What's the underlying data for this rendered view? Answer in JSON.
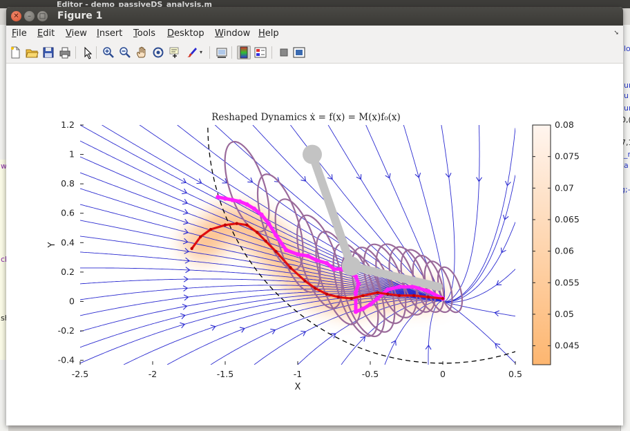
{
  "background": {
    "top_text": "Editor - demo_passiveDS_analysis.m",
    "right_fragments": [
      "lo",
      "ur",
      "u",
      "ur",
      "0,(",
      "7,1",
      "_n",
      "a",
      "g;-"
    ],
    "left_fragments": [
      "wi",
      "ck",
      "sh"
    ]
  },
  "window": {
    "title": "Figure 1",
    "close_label": "✕",
    "min_label": "–",
    "max_label": "□"
  },
  "menu": {
    "items": [
      "File",
      "Edit",
      "View",
      "Insert",
      "Tools",
      "Desktop",
      "Window",
      "Help"
    ],
    "mnemonic_index": [
      0,
      0,
      0,
      0,
      0,
      0,
      0,
      0
    ]
  },
  "toolbar": {
    "icons": [
      "new-figure-icon",
      "open-file-icon",
      "save-icon",
      "print-icon",
      "arrow-pointer-icon",
      "zoom-in-icon",
      "zoom-out-icon",
      "pan-hand-icon",
      "rotate-3d-icon",
      "data-cursor-icon",
      "brush-icon",
      "link-plot-icon",
      "colorbar-icon",
      "legend-icon",
      "hide-plot-tools-icon",
      "show-plot-tools-icon"
    ]
  },
  "chart_data": {
    "type": "streamline",
    "title": "Reshaped Dynamics ẋ = f(x) = M(x)f₀(x)",
    "xlabel": "X",
    "ylabel": "Y",
    "xlim": [
      -2.5,
      0.5
    ],
    "ylim": [
      -0.43,
      1.2
    ],
    "xticks": [
      "-2.5",
      "-2",
      "-1.5",
      "-1",
      "-0.5",
      "0",
      "0.5"
    ],
    "xtick_values": [
      -2.5,
      -2,
      -1.5,
      -1,
      -0.5,
      0,
      0.5
    ],
    "yticks": [
      "-0.4",
      "-0.2",
      "0",
      "0.2",
      "0.4",
      "0.6",
      "0.8",
      "1",
      "1.2"
    ],
    "ytick_values": [
      -0.4,
      -0.2,
      0,
      0.2,
      0.4,
      0.6,
      0.8,
      1,
      1.2
    ],
    "colorbar": {
      "ticks": [
        "0.045",
        "0.05",
        "0.055",
        "0.06",
        "0.065",
        "0.07",
        "0.075",
        "0.08"
      ],
      "tick_values": [
        0.045,
        0.05,
        0.055,
        0.06,
        0.065,
        0.07,
        0.075,
        0.08
      ],
      "range": [
        0.042,
        0.08
      ],
      "color_low": "#fdb670",
      "color_high": "#fff5ef"
    },
    "attractor": [
      0,
      0
    ],
    "dashed_boundary": {
      "center": [
        0,
        1.2
      ],
      "radius": 1.62,
      "style": "dashed",
      "color": "#000000"
    },
    "trajectory_red": [
      [
        -1.73,
        0.36
      ],
      [
        -1.67,
        0.44
      ],
      [
        -1.6,
        0.49
      ],
      [
        -1.5,
        0.52
      ],
      [
        -1.42,
        0.53
      ],
      [
        -1.35,
        0.52
      ],
      [
        -1.28,
        0.47
      ],
      [
        -1.22,
        0.41
      ],
      [
        -1.15,
        0.34
      ],
      [
        -1.05,
        0.23
      ],
      [
        -0.95,
        0.14
      ],
      [
        -0.88,
        0.09
      ],
      [
        -0.8,
        0.05
      ],
      [
        -0.72,
        0.03
      ],
      [
        -0.63,
        0.02
      ],
      [
        -0.55,
        0.04
      ],
      [
        -0.45,
        0.06
      ],
      [
        -0.38,
        0.05
      ],
      [
        -0.3,
        0.04
      ],
      [
        -0.2,
        0.04
      ],
      [
        -0.1,
        0.03
      ],
      [
        0,
        0.02
      ]
    ],
    "trajectory_magenta": [
      [
        -1.55,
        0.71
      ],
      [
        -1.5,
        0.7
      ],
      [
        -1.45,
        0.69
      ],
      [
        -1.4,
        0.68
      ],
      [
        -1.35,
        0.66
      ],
      [
        -1.3,
        0.63
      ],
      [
        -1.25,
        0.59
      ],
      [
        -1.2,
        0.53
      ],
      [
        -1.15,
        0.45
      ],
      [
        -1.08,
        0.35
      ],
      [
        -1.0,
        0.32
      ],
      [
        -0.93,
        0.31
      ],
      [
        -0.87,
        0.28
      ],
      [
        -0.8,
        0.26
      ],
      [
        -0.75,
        0.22
      ],
      [
        -0.7,
        0.22
      ],
      [
        -0.65,
        0.2
      ],
      [
        -0.6,
        0.17
      ],
      [
        -0.58,
        0.12
      ],
      [
        -0.6,
        0.06
      ],
      [
        -0.6,
        -0.07
      ],
      [
        -0.55,
        -0.05
      ],
      [
        -0.5,
        -0.02
      ],
      [
        -0.45,
        0.02
      ],
      [
        -0.38,
        0.08
      ],
      [
        -0.3,
        0.1
      ],
      [
        -0.2,
        0.1
      ],
      [
        -0.1,
        0.07
      ],
      [
        0,
        0.02
      ]
    ],
    "covariance_ellipses": [
      {
        "cx": -1.35,
        "cy": 0.78,
        "rx": 0.12,
        "ry": 0.32
      },
      {
        "cx": -1.12,
        "cy": 0.54,
        "rx": 0.12,
        "ry": 0.34
      },
      {
        "cx": -1.0,
        "cy": 0.38,
        "rx": 0.12,
        "ry": 0.33
      },
      {
        "cx": -0.85,
        "cy": 0.27,
        "rx": 0.12,
        "ry": 0.33
      },
      {
        "cx": -0.72,
        "cy": 0.16,
        "rx": 0.12,
        "ry": 0.33
      },
      {
        "cx": -0.6,
        "cy": 0.08,
        "rx": 0.12,
        "ry": 0.33
      },
      {
        "cx": -0.55,
        "cy": 0.05,
        "rx": 0.12,
        "ry": 0.3
      },
      {
        "cx": -0.48,
        "cy": 0.08,
        "rx": 0.12,
        "ry": 0.3
      },
      {
        "cx": -0.4,
        "cy": 0.12,
        "rx": 0.12,
        "ry": 0.28
      },
      {
        "cx": -0.32,
        "cy": 0.14,
        "rx": 0.12,
        "ry": 0.26
      },
      {
        "cx": -0.24,
        "cy": 0.14,
        "rx": 0.11,
        "ry": 0.24
      },
      {
        "cx": -0.17,
        "cy": 0.14,
        "rx": 0.1,
        "ry": 0.22
      },
      {
        "cx": -0.1,
        "cy": 0.12,
        "rx": 0.09,
        "ry": 0.2
      },
      {
        "cx": -0.03,
        "cy": 0.1,
        "rx": 0.08,
        "ry": 0.18
      },
      {
        "cx": 0.05,
        "cy": 0.08,
        "rx": 0.07,
        "ry": 0.16
      }
    ],
    "robot_arm": {
      "joints": [
        [
          -0.03,
          0.1
        ],
        [
          -0.63,
          0.24
        ],
        [
          -0.9,
          1.0
        ]
      ],
      "color": "#c3c3c3"
    },
    "colors": {
      "streamline": "#2a2ad0",
      "ellipse": "#9a6a9a",
      "trajectory_red": "#e01010",
      "trajectory_magenta": "#ff20ff",
      "boundary": "#000000"
    },
    "grid": false
  }
}
